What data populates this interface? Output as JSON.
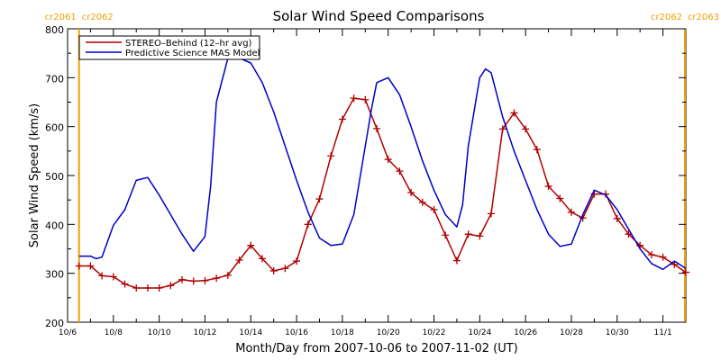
{
  "chart_data": {
    "type": "line",
    "title": "Solar Wind Speed Comparisons",
    "xlabel": "Month/Day from 2007-10-06 to 2007-11-02 (UT)",
    "ylabel": "Solar Wind Speed (km/s)",
    "xlim": [
      "2007-10-06",
      "2007-11-02"
    ],
    "ylim": [
      200,
      800
    ],
    "x_ticks": [
      "10/6",
      "10/8",
      "10/10",
      "10/12",
      "10/14",
      "10/16",
      "10/18",
      "10/20",
      "10/22",
      "10/24",
      "10/26",
      "10/28",
      "10/30",
      "11/1"
    ],
    "y_ticks": [
      200,
      300,
      400,
      500,
      600,
      700,
      800
    ],
    "legend_position": "top-left",
    "grid": false,
    "boundaries": [
      {
        "date": "2007-10-06.5",
        "labels": [
          "cr2061",
          "cr2062"
        ],
        "side": "left"
      },
      {
        "date": "2007-11-02",
        "labels": [
          "cr2062",
          "cr2063"
        ],
        "side": "right"
      }
    ],
    "series": [
      {
        "name": "STEREO–Behind (12–hr avg)",
        "color": "#b00000",
        "marker": "plus",
        "x": [
          "10/6 12:00",
          "10/7 00:00",
          "10/7 12:00",
          "10/8 00:00",
          "10/8 12:00",
          "10/9 00:00",
          "10/9 12:00",
          "10/10 00:00",
          "10/10 12:00",
          "10/11 00:00",
          "10/11 12:00",
          "10/12 00:00",
          "10/12 12:00",
          "10/13 00:00",
          "10/13 12:00",
          "10/14 00:00",
          "10/14 12:00",
          "10/15 00:00",
          "10/15 12:00",
          "10/16 00:00",
          "10/16 12:00",
          "10/17 00:00",
          "10/17 12:00",
          "10/18 00:00",
          "10/18 12:00",
          "10/19 00:00",
          "10/19 12:00",
          "10/20 00:00",
          "10/20 12:00",
          "10/21 00:00",
          "10/21 12:00",
          "10/22 00:00",
          "10/22 12:00",
          "10/23 00:00",
          "10/23 12:00",
          "10/24 00:00",
          "10/24 12:00",
          "10/25 00:00",
          "10/25 12:00",
          "10/26 00:00",
          "10/26 12:00",
          "10/27 00:00",
          "10/27 12:00",
          "10/28 00:00",
          "10/28 12:00",
          "10/29 00:00",
          "10/29 12:00",
          "10/30 00:00",
          "10/30 12:00",
          "10/31 00:00",
          "10/31 12:00",
          "11/1 00:00",
          "11/1 12:00",
          "11/2 00:00"
        ],
        "values": [
          315,
          315,
          295,
          293,
          278,
          270,
          270,
          270,
          275,
          287,
          284,
          285,
          290,
          296,
          327,
          357,
          330,
          305,
          310,
          325,
          400,
          452,
          540,
          615,
          658,
          655,
          596,
          533,
          509,
          465,
          445,
          430,
          378,
          326,
          380,
          376,
          422,
          595,
          628,
          595,
          553,
          478,
          453,
          425,
          413,
          462,
          462,
          412,
          380,
          357,
          338,
          333,
          318,
          302
        ]
      },
      {
        "name": "Predictive Science MAS Model",
        "color": "#0000c8",
        "marker": "none",
        "x": [
          "10/6 12:00",
          "10/7 00:00",
          "10/7 06:00",
          "10/7 12:00",
          "10/8 00:00",
          "10/8 12:00",
          "10/9 00:00",
          "10/9 12:00",
          "10/10 00:00",
          "10/10 12:00",
          "10/11 00:00",
          "10/11 12:00",
          "10/12 00:00",
          "10/12 06:00",
          "10/12 12:00",
          "10/13 00:00",
          "10/13 12:00",
          "10/14 00:00",
          "10/14 12:00",
          "10/15 00:00",
          "10/15 12:00",
          "10/16 00:00",
          "10/16 12:00",
          "10/17 00:00",
          "10/17 12:00",
          "10/18 00:00",
          "10/18 12:00",
          "10/19 00:00",
          "10/19 06:00",
          "10/19 12:00",
          "10/20 00:00",
          "10/20 12:00",
          "10/21 00:00",
          "10/21 12:00",
          "10/22 00:00",
          "10/22 12:00",
          "10/23 00:00",
          "10/23 06:00",
          "10/23 12:00",
          "10/24 00:00",
          "10/24 06:00",
          "10/24 12:00",
          "10/25 00:00",
          "10/25 12:00",
          "10/26 00:00",
          "10/26 12:00",
          "10/27 00:00",
          "10/27 12:00",
          "10/28 00:00",
          "10/28 12:00",
          "10/29 00:00",
          "10/29 12:00",
          "10/30 00:00",
          "10/30 12:00",
          "10/31 00:00",
          "10/31 12:00",
          "11/1 00:00",
          "11/1 12:00",
          "11/2 00:00"
        ],
        "values": [
          335,
          335,
          330,
          333,
          398,
          430,
          490,
          496,
          460,
          420,
          380,
          345,
          375,
          480,
          650,
          740,
          740,
          730,
          690,
          630,
          560,
          490,
          425,
          372,
          357,
          360,
          420,
          560,
          630,
          690,
          700,
          665,
          600,
          530,
          470,
          420,
          395,
          440,
          560,
          700,
          718,
          710,
          620,
          550,
          490,
          430,
          380,
          355,
          360,
          420,
          470,
          460,
          430,
          390,
          350,
          320,
          308,
          325,
          310
        ]
      }
    ]
  }
}
